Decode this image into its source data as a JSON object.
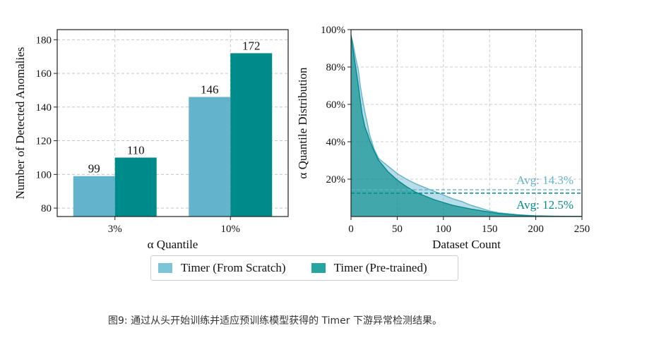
{
  "chart_data": [
    {
      "type": "bar",
      "xlabel": "α Quantile",
      "ylabel": "Number of Detected Anomalies",
      "categories": [
        "3%",
        "10%"
      ],
      "ylim": [
        75,
        186
      ],
      "yticks": [
        80,
        100,
        120,
        140,
        160,
        180
      ],
      "grid": true,
      "series": [
        {
          "name": "Timer (From Scratch)",
          "values": [
            99,
            146
          ],
          "color": "#63b3cc"
        },
        {
          "name": "Timer (Pre-trained)",
          "values": [
            110,
            172
          ],
          "color": "#008b8b"
        }
      ]
    },
    {
      "type": "area",
      "xlabel": "Dataset Count",
      "ylabel": "α Quantile Distribution",
      "xlim": [
        0,
        250
      ],
      "ylim": [
        0,
        100
      ],
      "xticks": [
        0,
        50,
        100,
        150,
        200,
        250
      ],
      "yticks": [
        20,
        40,
        60,
        80,
        100
      ],
      "ytick_labels": [
        "20%",
        "40%",
        "60%",
        "80%",
        "100%"
      ],
      "grid": true,
      "series": [
        {
          "name": "Timer (From Scratch)",
          "color": "#63b3cc",
          "x": [
            0,
            2,
            5,
            8,
            10,
            12,
            15,
            18,
            20,
            25,
            30,
            35,
            40,
            50,
            60,
            70,
            80,
            90,
            100,
            110,
            120,
            130,
            140,
            150,
            160,
            170,
            180,
            190,
            200,
            220,
            240,
            250
          ],
          "y": [
            97,
            93,
            85,
            78,
            70,
            64,
            56,
            49,
            44,
            36,
            31,
            29,
            27,
            23,
            20,
            17.5,
            15.5,
            13.5,
            11.5,
            9.5,
            8,
            6,
            4.5,
            3,
            2,
            1.5,
            1,
            0.7,
            0.4,
            0.2,
            0.1,
            0.1
          ],
          "avg": 14.3,
          "avg_label": "Avg: 14.3%"
        },
        {
          "name": "Timer (Pre-trained)",
          "color": "#008b8b",
          "x": [
            0,
            2,
            5,
            8,
            10,
            12,
            15,
            18,
            20,
            25,
            30,
            35,
            40,
            50,
            60,
            70,
            80,
            90,
            100,
            110,
            120,
            130,
            140,
            150,
            160,
            170,
            180,
            190,
            200,
            220,
            240,
            250
          ],
          "y": [
            97,
            90,
            80,
            70,
            62,
            55,
            48,
            44,
            41,
            35,
            30,
            27,
            24,
            19.5,
            16,
            13,
            11,
            9,
            7.5,
            6,
            5,
            4,
            3.2,
            2.4,
            1.6,
            1.2,
            0.8,
            0.5,
            0.3,
            0.1,
            0.05,
            0.05
          ],
          "avg": 12.5,
          "avg_label": "Avg: 12.5%"
        }
      ]
    }
  ],
  "legend": {
    "items": [
      {
        "label": "Timer (From Scratch)",
        "color": "#63b3cc"
      },
      {
        "label": "Timer (Pre-trained)",
        "color": "#008b8b"
      }
    ]
  },
  "caption": "图9:  通过从头开始训练并适应预训练模型获得的 Timer 下游异常检测结果。"
}
